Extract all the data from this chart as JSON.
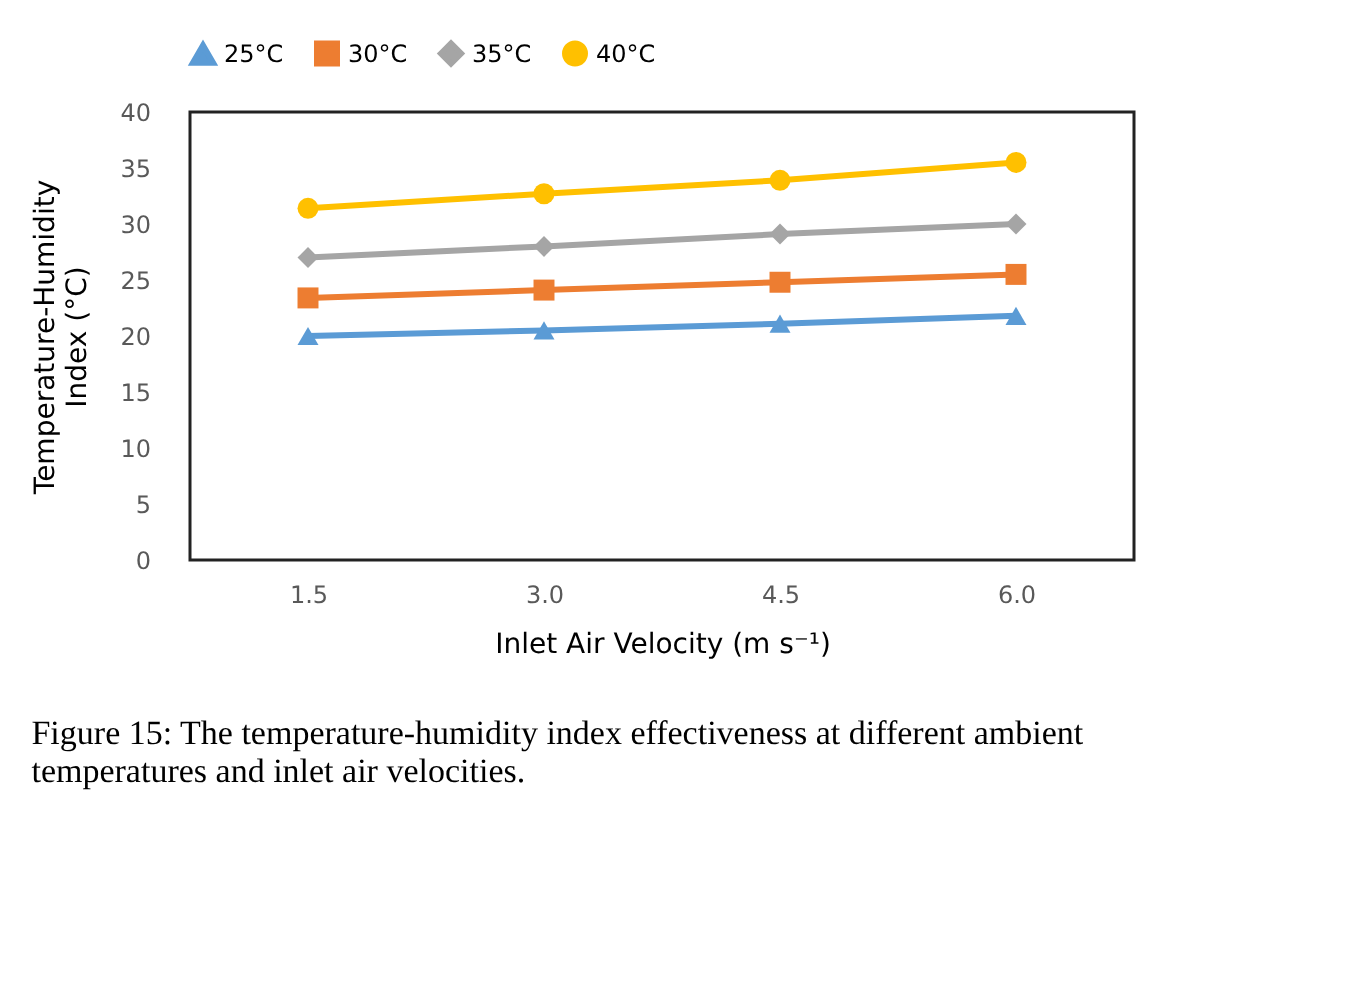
{
  "chart_data": {
    "type": "line",
    "xlabel": "Inlet Air Velocity (m s⁻¹)",
    "ylabel": "Temperature-Humidity Index (°C)",
    "categories": [
      "1.5",
      "3.0",
      "4.5",
      "6.0"
    ],
    "series": [
      {
        "name": "25°C",
        "color": "#5b9bd5",
        "marker": "triangle",
        "values": [
          20.0,
          20.5,
          21.1,
          21.8
        ]
      },
      {
        "name": "30°C",
        "color": "#ed7d31",
        "marker": "square",
        "values": [
          23.4,
          24.1,
          24.8,
          25.5
        ]
      },
      {
        "name": "35°C",
        "color": "#a5a5a5",
        "marker": "diamond",
        "values": [
          27.0,
          28.0,
          29.1,
          30.0
        ]
      },
      {
        "name": "40°C",
        "color": "#ffc000",
        "marker": "circle",
        "values": [
          31.4,
          32.7,
          33.9,
          35.5
        ]
      }
    ],
    "ylim": [
      0,
      40
    ],
    "yticks": [
      0,
      5,
      10,
      15,
      20,
      25,
      30,
      35,
      40
    ],
    "grid": false,
    "legend": "top",
    "line_style": "solid",
    "annotations": [
      "Figure 15: The temperature-humidity index effectiveness at different ambient temperatures and inlet air velocities."
    ]
  }
}
